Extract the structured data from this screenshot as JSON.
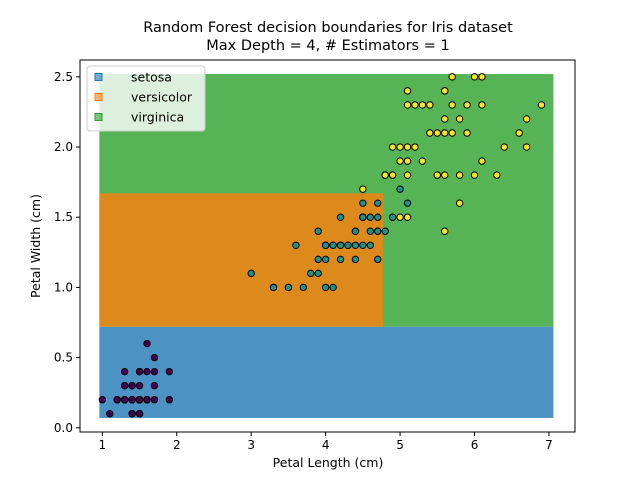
{
  "chart_data": {
    "type": "scatter",
    "title": "Random Forest decision boundaries for Iris dataset",
    "subtitle": "Max Depth = 4, # Estimators = 1",
    "xlabel": "Petal Length (cm)",
    "ylabel": "Petal Width (cm)",
    "xlim": [
      0.7,
      7.35
    ],
    "ylim": [
      -0.03,
      2.62
    ],
    "xticks": [
      1,
      2,
      3,
      4,
      5,
      6,
      7
    ],
    "xtick_labels": [
      "1",
      "2",
      "3",
      "4",
      "5",
      "6",
      "7"
    ],
    "yticks": [
      0,
      0.5,
      1,
      1.5,
      2,
      2.5
    ],
    "ytick_labels": [
      "0.0",
      "0.5",
      "1.0",
      "1.5",
      "2.0",
      "2.5"
    ],
    "grid": false,
    "legend_placement": "upper-left",
    "legend": [
      {
        "label": "setosa",
        "color": "#1f77b4"
      },
      {
        "label": "versicolor",
        "color": "#ff7f0e"
      },
      {
        "label": "virginica",
        "color": "#2ca02c"
      }
    ],
    "regions": [
      {
        "class": "virginica",
        "color": "#2ca02c",
        "x": [
          0.96,
          7.06
        ],
        "y": [
          0.72,
          2.52
        ]
      },
      {
        "class": "setosa",
        "color": "#1f77b4",
        "x": [
          0.96,
          7.06
        ],
        "y": [
          0.07,
          0.72
        ]
      },
      {
        "class": "versicolor",
        "color": "#ff7f0e",
        "x": [
          0.96,
          4.77
        ],
        "y": [
          0.72,
          1.67
        ]
      }
    ],
    "series": [
      {
        "class": "setosa",
        "color": "#440154",
        "points": [
          [
            1.4,
            0.2
          ],
          [
            1.4,
            0.2
          ],
          [
            1.3,
            0.2
          ],
          [
            1.5,
            0.2
          ],
          [
            1.4,
            0.2
          ],
          [
            1.7,
            0.4
          ],
          [
            1.4,
            0.3
          ],
          [
            1.5,
            0.2
          ],
          [
            1.4,
            0.2
          ],
          [
            1.5,
            0.1
          ],
          [
            1.5,
            0.2
          ],
          [
            1.6,
            0.2
          ],
          [
            1.4,
            0.1
          ],
          [
            1.1,
            0.1
          ],
          [
            1.2,
            0.2
          ],
          [
            1.5,
            0.4
          ],
          [
            1.3,
            0.4
          ],
          [
            1.4,
            0.3
          ],
          [
            1.7,
            0.3
          ],
          [
            1.5,
            0.3
          ],
          [
            1.7,
            0.2
          ],
          [
            1.5,
            0.4
          ],
          [
            1.0,
            0.2
          ],
          [
            1.7,
            0.5
          ],
          [
            1.9,
            0.2
          ],
          [
            1.6,
            0.2
          ],
          [
            1.6,
            0.4
          ],
          [
            1.5,
            0.2
          ],
          [
            1.4,
            0.2
          ],
          [
            1.6,
            0.2
          ],
          [
            1.6,
            0.2
          ],
          [
            1.5,
            0.4
          ],
          [
            1.5,
            0.1
          ],
          [
            1.4,
            0.2
          ],
          [
            1.5,
            0.2
          ],
          [
            1.2,
            0.2
          ],
          [
            1.3,
            0.2
          ],
          [
            1.4,
            0.1
          ],
          [
            1.3,
            0.2
          ],
          [
            1.5,
            0.2
          ],
          [
            1.3,
            0.3
          ],
          [
            1.3,
            0.3
          ],
          [
            1.3,
            0.2
          ],
          [
            1.6,
            0.6
          ],
          [
            1.9,
            0.4
          ],
          [
            1.4,
            0.3
          ],
          [
            1.6,
            0.2
          ],
          [
            1.4,
            0.2
          ],
          [
            1.5,
            0.2
          ],
          [
            1.4,
            0.2
          ]
        ]
      },
      {
        "class": "versicolor",
        "color": "#21918c",
        "points": [
          [
            4.7,
            1.4
          ],
          [
            4.5,
            1.5
          ],
          [
            4.9,
            1.5
          ],
          [
            4.0,
            1.3
          ],
          [
            4.6,
            1.5
          ],
          [
            4.5,
            1.3
          ],
          [
            4.7,
            1.6
          ],
          [
            3.3,
            1.0
          ],
          [
            4.6,
            1.3
          ],
          [
            3.9,
            1.4
          ],
          [
            3.5,
            1.0
          ],
          [
            4.2,
            1.5
          ],
          [
            4.0,
            1.0
          ],
          [
            4.7,
            1.4
          ],
          [
            3.6,
            1.3
          ],
          [
            4.4,
            1.4
          ],
          [
            4.5,
            1.5
          ],
          [
            4.1,
            1.0
          ],
          [
            4.5,
            1.5
          ],
          [
            3.9,
            1.1
          ],
          [
            4.8,
            1.8
          ],
          [
            4.0,
            1.3
          ],
          [
            4.9,
            1.5
          ],
          [
            4.7,
            1.2
          ],
          [
            4.3,
            1.3
          ],
          [
            4.4,
            1.4
          ],
          [
            4.8,
            1.4
          ],
          [
            5.0,
            1.7
          ],
          [
            4.5,
            1.5
          ],
          [
            3.5,
            1.0
          ],
          [
            3.8,
            1.1
          ],
          [
            3.7,
            1.0
          ],
          [
            3.9,
            1.2
          ],
          [
            5.1,
            1.6
          ],
          [
            4.5,
            1.5
          ],
          [
            4.5,
            1.6
          ],
          [
            4.7,
            1.5
          ],
          [
            4.4,
            1.3
          ],
          [
            4.1,
            1.3
          ],
          [
            4.0,
            1.3
          ],
          [
            4.4,
            1.2
          ],
          [
            4.6,
            1.4
          ],
          [
            4.0,
            1.2
          ],
          [
            3.3,
            1.0
          ],
          [
            4.2,
            1.3
          ],
          [
            4.2,
            1.2
          ],
          [
            4.2,
            1.3
          ],
          [
            4.3,
            1.3
          ],
          [
            3.0,
            1.1
          ],
          [
            4.1,
            1.3
          ]
        ]
      },
      {
        "class": "virginica",
        "color": "#fde725",
        "points": [
          [
            6.0,
            2.5
          ],
          [
            5.1,
            1.9
          ],
          [
            5.9,
            2.1
          ],
          [
            5.6,
            1.8
          ],
          [
            5.8,
            2.2
          ],
          [
            6.6,
            2.1
          ],
          [
            4.5,
            1.7
          ],
          [
            6.3,
            1.8
          ],
          [
            5.8,
            1.8
          ],
          [
            6.1,
            2.5
          ],
          [
            5.1,
            2.0
          ],
          [
            5.3,
            1.9
          ],
          [
            5.5,
            2.1
          ],
          [
            5.0,
            2.0
          ],
          [
            5.1,
            2.4
          ],
          [
            5.3,
            2.3
          ],
          [
            5.5,
            1.8
          ],
          [
            6.7,
            2.2
          ],
          [
            6.9,
            2.3
          ],
          [
            5.0,
            1.5
          ],
          [
            5.7,
            2.3
          ],
          [
            4.9,
            2.0
          ],
          [
            6.7,
            2.0
          ],
          [
            4.9,
            1.8
          ],
          [
            5.7,
            2.1
          ],
          [
            6.0,
            1.8
          ],
          [
            4.8,
            1.8
          ],
          [
            4.9,
            1.8
          ],
          [
            5.6,
            2.1
          ],
          [
            5.8,
            1.6
          ],
          [
            6.1,
            1.9
          ],
          [
            6.4,
            2.0
          ],
          [
            5.6,
            2.2
          ],
          [
            5.1,
            1.5
          ],
          [
            5.6,
            1.4
          ],
          [
            6.1,
            2.3
          ],
          [
            5.6,
            2.4
          ],
          [
            5.5,
            1.8
          ],
          [
            4.8,
            1.8
          ],
          [
            5.4,
            2.1
          ],
          [
            5.6,
            2.4
          ],
          [
            5.1,
            2.3
          ],
          [
            5.1,
            1.9
          ],
          [
            5.9,
            2.3
          ],
          [
            5.7,
            2.5
          ],
          [
            5.2,
            2.3
          ],
          [
            5.0,
            1.9
          ],
          [
            5.2,
            2.0
          ],
          [
            5.4,
            2.3
          ],
          [
            5.1,
            1.8
          ]
        ]
      }
    ]
  }
}
